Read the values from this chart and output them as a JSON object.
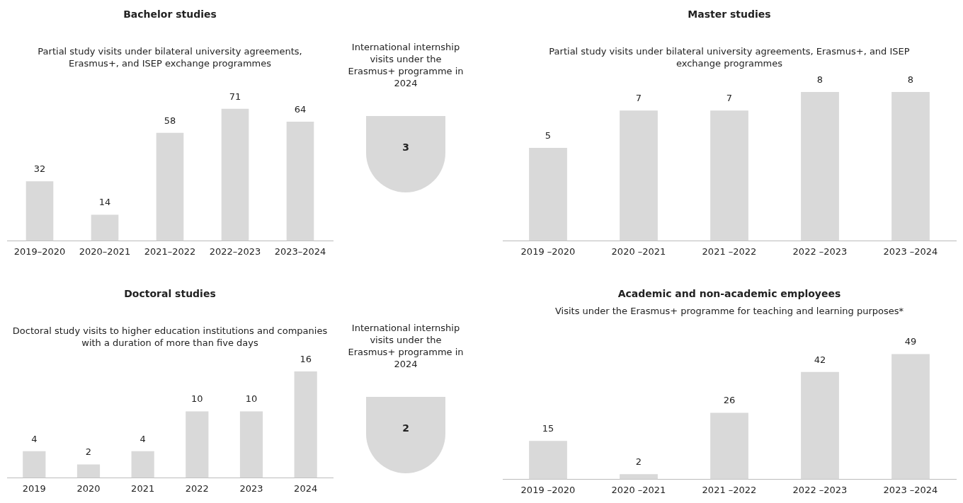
{
  "chart_data": [
    {
      "type": "bar",
      "title": "Bachelor studies",
      "subtitle": "Partial study visits under bilateral university agreements, Erasmus+, and ISEP exchange programmes",
      "categories": [
        "2019–2020",
        "2020–2021",
        "2021–2022",
        "2022–2023",
        "2023–2024"
      ],
      "values": [
        32,
        14,
        58,
        71,
        64
      ],
      "color": "#d9d9d9",
      "data_labels": true,
      "tick_labels": "x"
    },
    {
      "type": "other",
      "title": "International internship visits under the Erasmus+ programme in 2024",
      "annotations": [
        "3"
      ]
    },
    {
      "type": "bar",
      "title": "Master studies",
      "subtitle": "Partial study visits under bilateral university agreements, Erasmus+, and ISEP exchange programmes",
      "categories": [
        "2019 –2020",
        "2020 –2021",
        "2021 –2022",
        "2022 –2023",
        "2023 –2024"
      ],
      "values": [
        5,
        7,
        7,
        8,
        8
      ],
      "color": "#d9d9d9",
      "data_labels": true,
      "tick_labels": "x"
    },
    {
      "type": "bar",
      "title": "Doctoral studies",
      "subtitle": "Doctoral study visits to higher education institutions and companies with a duration of more than five days",
      "categories": [
        "2019",
        "2020",
        "2021",
        "2022",
        "2023",
        "2024"
      ],
      "values": [
        4,
        2,
        4,
        10,
        10,
        16
      ],
      "color": "#d9d9d9",
      "data_labels": true,
      "tick_labels": "x"
    },
    {
      "type": "other",
      "title": "International internship visits under the Erasmus+ programme in 2024",
      "annotations": [
        "2"
      ]
    },
    {
      "type": "bar",
      "title": "Academic and non-academic employees",
      "subtitle": "Visits under the Erasmus+ programme for teaching and learning purposes*",
      "categories": [
        "2019 –2020",
        "2020 –2021",
        "2021 –2022",
        "2022 –2023",
        "2023 –2024"
      ],
      "values": [
        15,
        2,
        26,
        42,
        49
      ],
      "color": "#d9d9d9",
      "data_labels": true,
      "tick_labels": "x"
    }
  ]
}
